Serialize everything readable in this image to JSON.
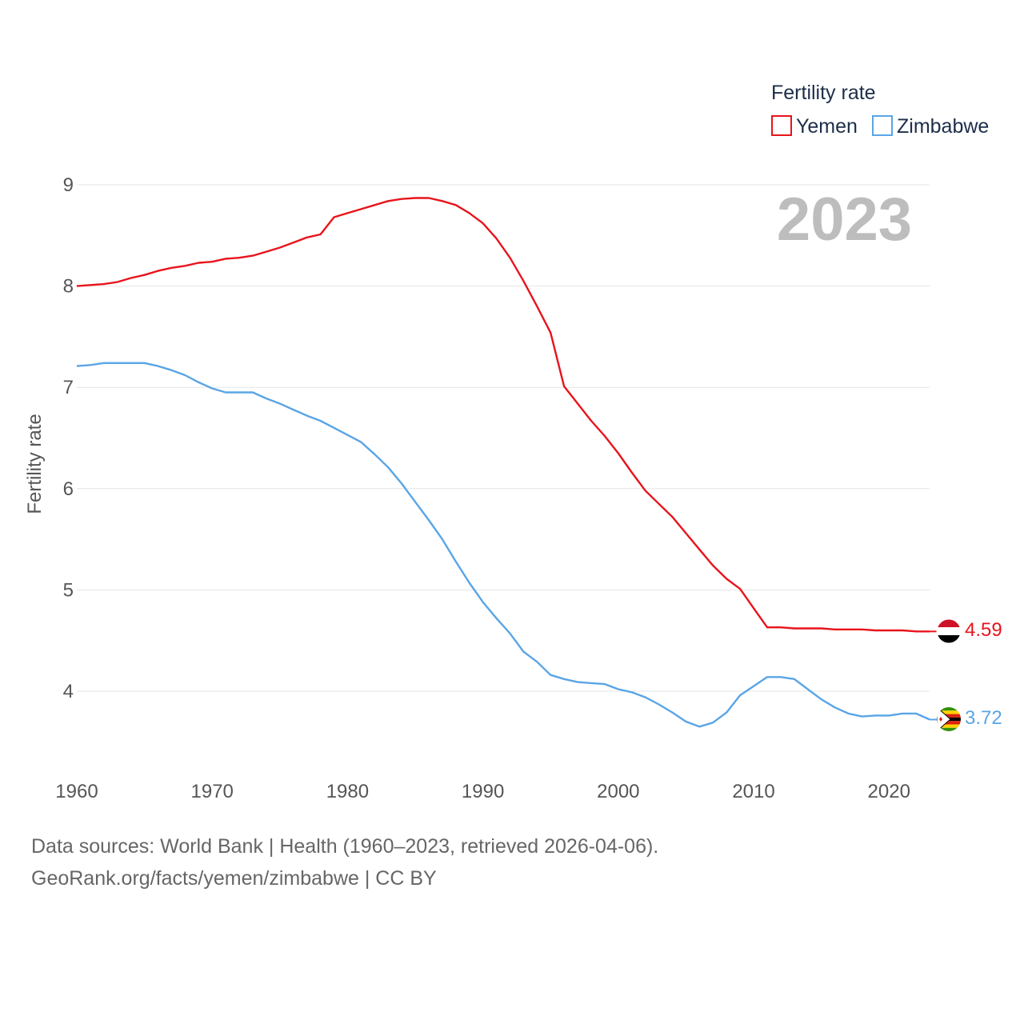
{
  "chart_data": {
    "type": "line",
    "ylabel": "Fertility rate",
    "xlabel": "",
    "xlim": [
      1960,
      2023
    ],
    "ylim": [
      3.4,
      9.1
    ],
    "x_ticks": [
      1960,
      1970,
      1980,
      1990,
      2000,
      2010,
      2020
    ],
    "y_ticks": [
      4,
      5,
      6,
      7,
      8,
      9
    ],
    "gridlines": "horizontal",
    "year_label": "2023",
    "legend": {
      "title": "Fertility rate",
      "position": "top-right",
      "entries": [
        "Yemen",
        "Zimbabwe"
      ]
    },
    "x": [
      1960,
      1961,
      1962,
      1963,
      1964,
      1965,
      1966,
      1967,
      1968,
      1969,
      1970,
      1971,
      1972,
      1973,
      1974,
      1975,
      1976,
      1977,
      1978,
      1979,
      1980,
      1981,
      1982,
      1983,
      1984,
      1985,
      1986,
      1987,
      1988,
      1989,
      1990,
      1991,
      1992,
      1993,
      1994,
      1995,
      1996,
      1997,
      1998,
      1999,
      2000,
      2001,
      2002,
      2003,
      2004,
      2005,
      2006,
      2007,
      2008,
      2009,
      2010,
      2011,
      2012,
      2013,
      2014,
      2015,
      2016,
      2017,
      2018,
      2019,
      2020,
      2021,
      2022,
      2023
    ],
    "series": [
      {
        "name": "Yemen",
        "color": "#e8141c",
        "end_label": "4.59",
        "values": [
          8.0,
          8.01,
          8.02,
          8.04,
          8.08,
          8.11,
          8.15,
          8.18,
          8.2,
          8.23,
          8.24,
          8.27,
          8.28,
          8.3,
          8.34,
          8.38,
          8.43,
          8.48,
          8.51,
          8.68,
          8.72,
          8.76,
          8.8,
          8.84,
          8.86,
          8.87,
          8.87,
          8.84,
          8.8,
          8.72,
          8.62,
          8.47,
          8.28,
          8.05,
          7.8,
          7.54,
          7.01,
          6.84,
          6.67,
          6.52,
          6.35,
          6.16,
          5.98,
          5.85,
          5.72,
          5.56,
          5.4,
          5.24,
          5.11,
          5.01,
          4.82,
          4.63,
          4.63,
          4.62,
          4.62,
          4.62,
          4.61,
          4.61,
          4.61,
          4.6,
          4.6,
          4.6,
          4.59,
          4.59
        ]
      },
      {
        "name": "Zimbabwe",
        "color": "#5aa5e6",
        "end_label": "3.72",
        "values": [
          7.21,
          7.22,
          7.24,
          7.24,
          7.24,
          7.24,
          7.21,
          7.17,
          7.12,
          7.05,
          6.99,
          6.95,
          6.95,
          6.95,
          6.89,
          6.84,
          6.78,
          6.72,
          6.67,
          6.6,
          6.53,
          6.46,
          6.34,
          6.21,
          6.05,
          5.87,
          5.69,
          5.5,
          5.28,
          5.07,
          4.88,
          4.72,
          4.57,
          4.39,
          4.29,
          4.16,
          4.12,
          4.09,
          4.08,
          4.07,
          4.02,
          3.99,
          3.94,
          3.87,
          3.79,
          3.7,
          3.65,
          3.69,
          3.79,
          3.96,
          4.05,
          4.14,
          4.14,
          4.12,
          4.02,
          3.92,
          3.84,
          3.78,
          3.75,
          3.76,
          3.76,
          3.78,
          3.78,
          3.72
        ]
      }
    ]
  },
  "footer": {
    "line1": "Data sources: World Bank | Health (1960–2023, retrieved 2026-04-06).",
    "line2": "GeoRank.org/facts/yemen/zimbabwe | CC BY"
  },
  "icons": {
    "yemen": "yemen-flag-icon",
    "zimbabwe": "zimbabwe-flag-icon"
  }
}
